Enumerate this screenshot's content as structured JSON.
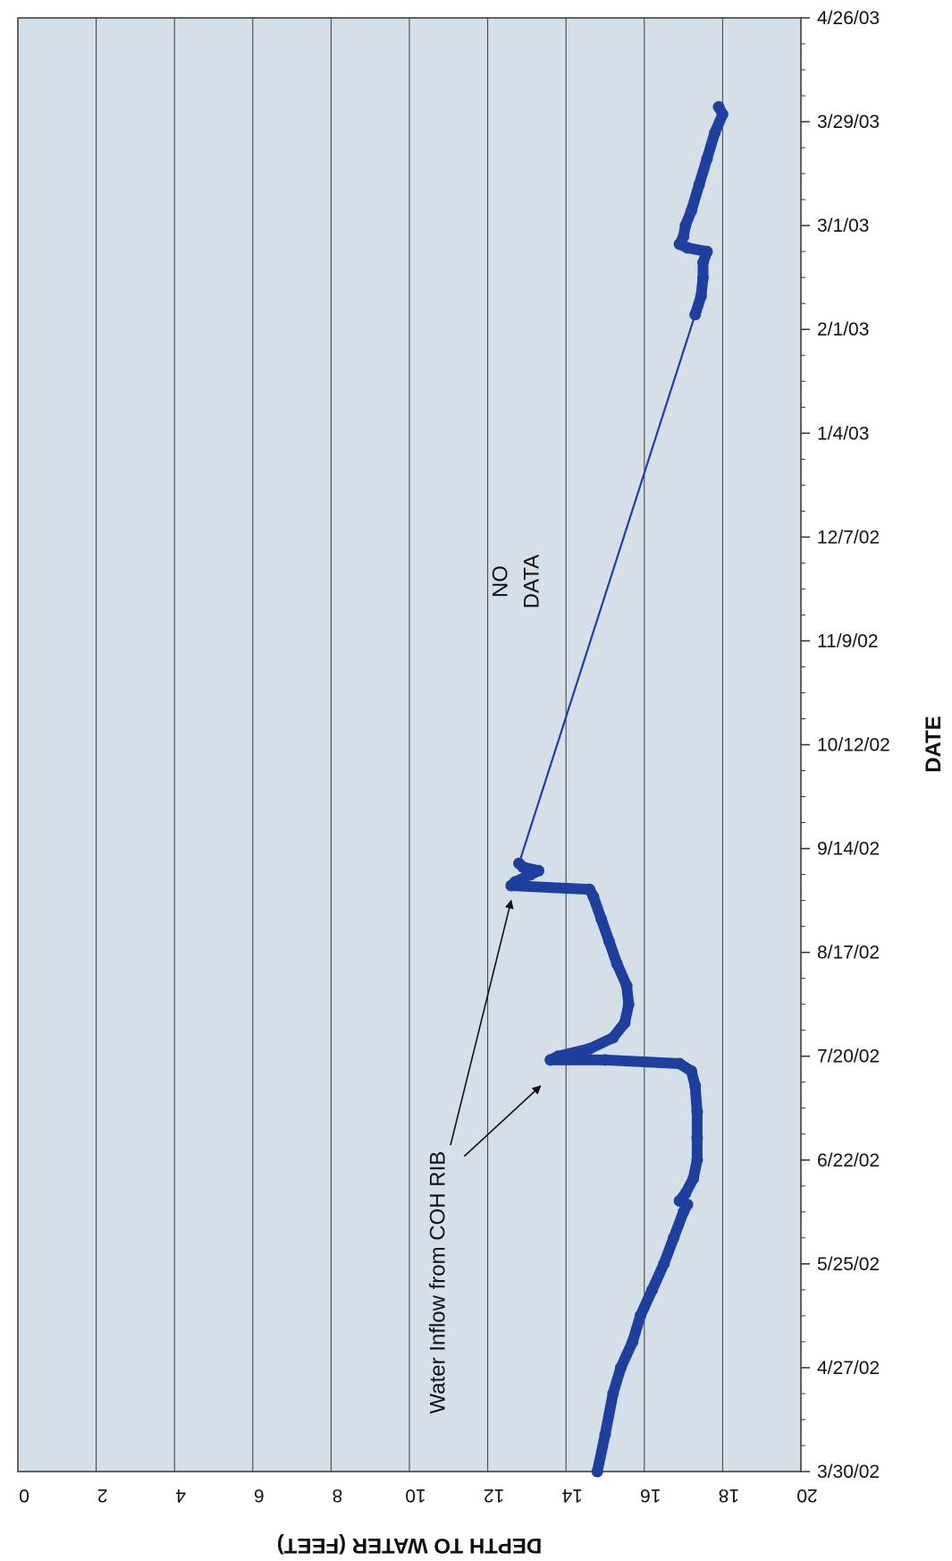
{
  "chart_data": {
    "type": "line",
    "orientation": "rotated-90-clockwise",
    "title": "",
    "xlabel": "DATE",
    "ylabel": "DEPTH TO WATER (FEET)",
    "ylim": [
      0,
      20
    ],
    "y_ticks": [
      0,
      2,
      4,
      6,
      8,
      10,
      12,
      14,
      16,
      18,
      20
    ],
    "x_range": [
      "3/30/02",
      "4/26/03"
    ],
    "x_ticks": [
      "3/30/02",
      "4/27/02",
      "5/25/02",
      "6/22/02",
      "7/20/02",
      "8/17/02",
      "9/14/02",
      "10/12/02",
      "11/9/02",
      "12/7/02",
      "1/4/03",
      "2/1/03",
      "3/1/03",
      "3/29/03",
      "4/26/03"
    ],
    "grid": "vertical-lines-at-depth-ticks",
    "background_color": "#d4dfe7",
    "series": [
      {
        "color": "#1f3f9f",
        "segments": [
          {
            "style": "thick",
            "points": [
              {
                "x": "3/30/02",
                "y": 14.8
              },
              {
                "x": "4/9/02",
                "y": 15.0
              },
              {
                "x": "4/20/02",
                "y": 15.2
              },
              {
                "x": "4/27/02",
                "y": 15.4
              },
              {
                "x": "5/4/02",
                "y": 15.7
              },
              {
                "x": "5/11/02",
                "y": 15.9
              },
              {
                "x": "5/18/02",
                "y": 16.2
              },
              {
                "x": "5/25/02",
                "y": 16.5
              },
              {
                "x": "6/1/02",
                "y": 16.75
              },
              {
                "x": "6/8/02",
                "y": 17.0
              },
              {
                "x": "6/10/02",
                "y": 17.1
              },
              {
                "x": "6/11/02",
                "y": 16.9
              },
              {
                "x": "6/13/02",
                "y": 17.05
              },
              {
                "x": "6/17/02",
                "y": 17.25
              },
              {
                "x": "6/22/02",
                "y": 17.35
              },
              {
                "x": "6/28/02",
                "y": 17.35
              },
              {
                "x": "7/5/02",
                "y": 17.35
              },
              {
                "x": "7/12/02",
                "y": 17.3
              },
              {
                "x": "7/16/02",
                "y": 17.2
              },
              {
                "x": "7/18/02",
                "y": 16.9
              },
              {
                "x": "7/19/02",
                "y": 15.0
              },
              {
                "x": "7/19/02",
                "y": 13.6
              },
              {
                "x": "7/20/02",
                "y": 13.8
              },
              {
                "x": "7/22/02",
                "y": 14.6
              },
              {
                "x": "7/25/02",
                "y": 15.2
              },
              {
                "x": "7/29/02",
                "y": 15.5
              },
              {
                "x": "8/3/02",
                "y": 15.6
              },
              {
                "x": "8/8/02",
                "y": 15.55
              },
              {
                "x": "8/14/02",
                "y": 15.3
              },
              {
                "x": "8/20/02",
                "y": 15.1
              },
              {
                "x": "8/26/02",
                "y": 14.9
              },
              {
                "x": "9/1/02",
                "y": 14.7
              },
              {
                "x": "9/3/02",
                "y": 14.6
              },
              {
                "x": "9/4/02",
                "y": 12.6
              },
              {
                "x": "9/5/02",
                "y": 12.7
              },
              {
                "x": "9/7/02",
                "y": 13.1
              },
              {
                "x": "9/8/02",
                "y": 13.3
              },
              {
                "x": "9/9/02",
                "y": 12.9
              },
              {
                "x": "9/10/02",
                "y": 12.8
              }
            ]
          },
          {
            "style": "thin",
            "points": [
              {
                "x": "9/10/02",
                "y": 12.8
              },
              {
                "x": "2/5/03",
                "y": 17.3
              }
            ]
          },
          {
            "style": "thick",
            "points": [
              {
                "x": "2/5/03",
                "y": 17.3
              },
              {
                "x": "2/10/03",
                "y": 17.45
              },
              {
                "x": "2/15/03",
                "y": 17.5
              },
              {
                "x": "2/19/03",
                "y": 17.5
              },
              {
                "x": "2/22/03",
                "y": 17.6
              },
              {
                "x": "2/23/03",
                "y": 17.1
              },
              {
                "x": "2/24/03",
                "y": 16.9
              },
              {
                "x": "2/26/03",
                "y": 17.0
              },
              {
                "x": "3/1/03",
                "y": 17.05
              },
              {
                "x": "3/5/03",
                "y": 17.2
              },
              {
                "x": "3/12/03",
                "y": 17.4
              },
              {
                "x": "3/19/03",
                "y": 17.6
              },
              {
                "x": "3/26/03",
                "y": 17.8
              },
              {
                "x": "3/31/03",
                "y": 18.0
              },
              {
                "x": "4/2/03",
                "y": 17.9
              }
            ]
          }
        ]
      }
    ],
    "annotations": [
      {
        "text": "NO",
        "x": "11/25/02",
        "y": 12.5
      },
      {
        "text": "DATA",
        "x": "11/25/02",
        "y": 13.3
      },
      {
        "text": "Water Inflow from COH RIB",
        "x": "5/20/02",
        "y": 10.9
      }
    ]
  }
}
